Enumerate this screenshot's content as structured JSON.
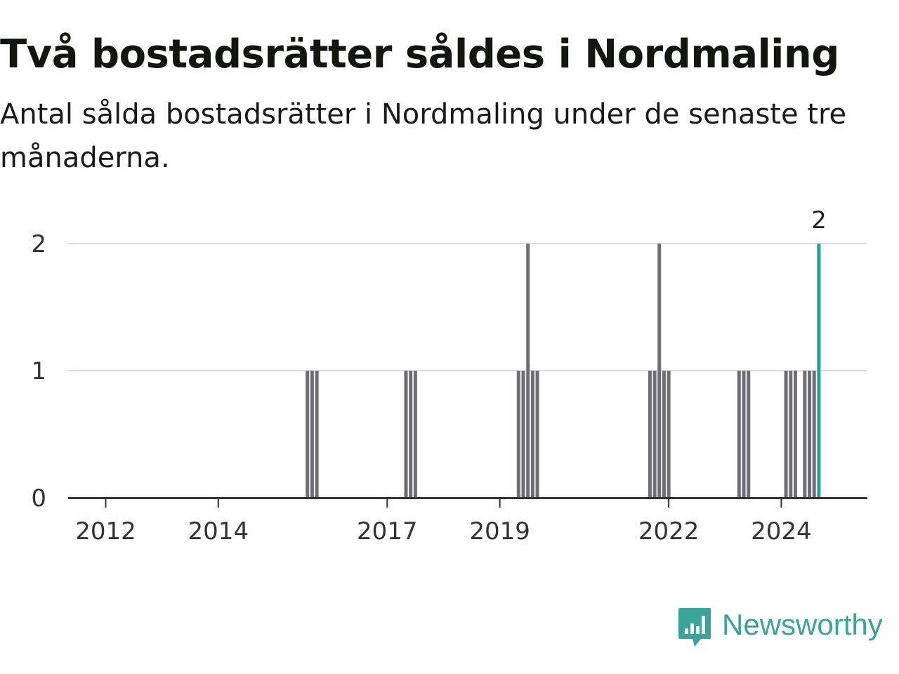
{
  "title": "Två bostadsrätter såldes i Nordmaling",
  "subtitle": "Antal sålda bostadsrätter i Nordmaling under de senaste tre månaderna.",
  "brand": {
    "name": "Newsworthy",
    "color": "#3aa39a",
    "icon": "newsworthy-logo-icon"
  },
  "colors": {
    "bar": "#6e6e74",
    "highlight": "#1fa39a",
    "grid": "#dddddd",
    "axis": "#333333"
  },
  "chart_data": {
    "type": "bar",
    "title": "Två bostadsrätter såldes i Nordmaling",
    "subtitle": "Antal sålda bostadsrätter i Nordmaling under de senaste tre månaderna.",
    "xlabel": "",
    "ylabel": "",
    "ylim": [
      0,
      2
    ],
    "yticks": [
      0,
      1,
      2
    ],
    "xticks": [
      "2012",
      "2014",
      "2017",
      "2019",
      "2022",
      "2024"
    ],
    "x_unit": "rolling 3-month period ending in month",
    "grid": true,
    "highlight_last": true,
    "last_value_label": "2",
    "points": [
      {
        "x": "2015-08",
        "y": 1
      },
      {
        "x": "2015-09",
        "y": 1
      },
      {
        "x": "2015-10",
        "y": 1
      },
      {
        "x": "2017-05",
        "y": 1
      },
      {
        "x": "2017-06",
        "y": 1
      },
      {
        "x": "2017-07",
        "y": 1
      },
      {
        "x": "2019-05",
        "y": 1
      },
      {
        "x": "2019-06",
        "y": 1
      },
      {
        "x": "2019-07",
        "y": 2
      },
      {
        "x": "2019-08",
        "y": 1
      },
      {
        "x": "2019-09",
        "y": 1
      },
      {
        "x": "2021-09",
        "y": 1
      },
      {
        "x": "2021-10",
        "y": 1
      },
      {
        "x": "2021-11",
        "y": 2
      },
      {
        "x": "2021-12",
        "y": 1
      },
      {
        "x": "2022-01",
        "y": 1
      },
      {
        "x": "2023-04",
        "y": 1
      },
      {
        "x": "2023-05",
        "y": 1
      },
      {
        "x": "2023-06",
        "y": 1
      },
      {
        "x": "2024-02",
        "y": 1
      },
      {
        "x": "2024-03",
        "y": 1
      },
      {
        "x": "2024-04",
        "y": 1
      },
      {
        "x": "2024-06",
        "y": 1
      },
      {
        "x": "2024-07",
        "y": 1
      },
      {
        "x": "2024-08",
        "y": 1
      },
      {
        "x": "2024-09",
        "y": 2
      }
    ]
  }
}
